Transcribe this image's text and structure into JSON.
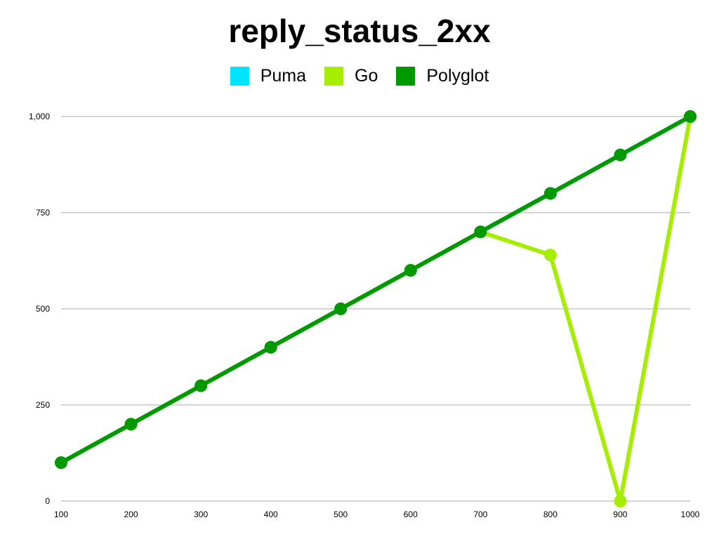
{
  "chart_data": {
    "type": "line",
    "title": "reply_status_2xx",
    "xlabel": "",
    "ylabel": "",
    "x": [
      100,
      200,
      300,
      400,
      500,
      600,
      700,
      800,
      900,
      1000
    ],
    "x_tick_labels": [
      "100",
      "200",
      "300",
      "400",
      "500",
      "600",
      "700",
      "800",
      "900",
      "1000"
    ],
    "y_ticks": [
      0,
      250,
      500,
      750,
      1000
    ],
    "y_tick_labels": [
      "0",
      "250",
      "500",
      "750",
      "1,000"
    ],
    "xlim": [
      100,
      1000
    ],
    "ylim": [
      0,
      1000
    ],
    "grid": "horizontal",
    "legend_position": "top-center",
    "series": [
      {
        "name": "Puma",
        "color": "#00e5ff",
        "values": [
          100,
          200,
          300,
          400,
          500,
          600,
          700,
          800,
          900,
          1000
        ]
      },
      {
        "name": "Go",
        "color": "#a6ee00",
        "values": [
          100,
          200,
          300,
          400,
          500,
          600,
          700,
          640,
          0,
          1000
        ]
      },
      {
        "name": "Polyglot",
        "color": "#009900",
        "values": [
          100,
          200,
          300,
          400,
          500,
          600,
          700,
          800,
          900,
          1000
        ]
      }
    ]
  }
}
